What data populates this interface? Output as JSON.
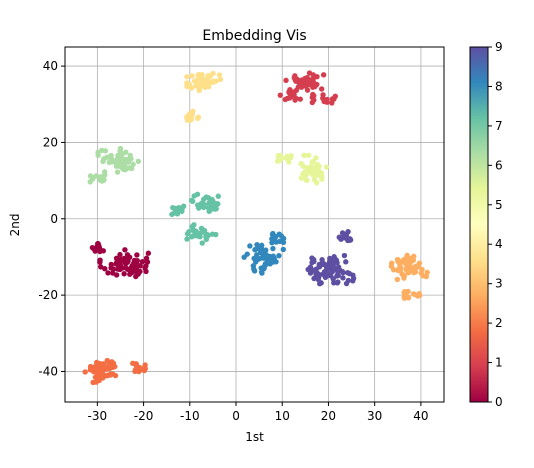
{
  "chart_data": {
    "type": "scatter",
    "title": "Embedding Vis",
    "xlabel": "1st",
    "ylabel": "2nd",
    "xlim": [
      -37,
      45
    ],
    "ylim": [
      -48,
      45
    ],
    "xticks": [
      -30,
      -20,
      -10,
      0,
      10,
      20,
      30,
      40
    ],
    "yticks": [
      -40,
      -20,
      0,
      20,
      40
    ],
    "grid": true,
    "colormap": "Spectral",
    "colorbar": {
      "min": 0,
      "max": 9,
      "ticks": [
        0,
        1,
        2,
        3,
        4,
        5,
        6,
        7,
        8,
        9
      ]
    },
    "clusters": [
      {
        "label": 0,
        "color": "#9e0142",
        "cx": -30,
        "cy": -7.5,
        "rx": 1.5,
        "ry": 1.2,
        "n": 14,
        "style": "square"
      },
      {
        "label": 0,
        "color": "#9e0142",
        "cx": -24,
        "cy": -12,
        "rx": 4.5,
        "ry": 3.2,
        "n": 70,
        "style": "blob"
      },
      {
        "label": 1,
        "color": "#d53e4f",
        "cx": 15,
        "cy": 36,
        "rx": 3.5,
        "ry": 2,
        "n": 45,
        "style": "blob"
      },
      {
        "label": 1,
        "color": "#d53e4f",
        "cx": 12,
        "cy": 32.5,
        "rx": 2,
        "ry": 1.8,
        "n": 18,
        "style": "blob"
      },
      {
        "label": 1,
        "color": "#d53e4f",
        "cx": 19,
        "cy": 31.5,
        "rx": 2.5,
        "ry": 1.2,
        "n": 16,
        "style": "square"
      },
      {
        "label": 2,
        "color": "#f46d43",
        "cx": -29,
        "cy": -39.5,
        "rx": 3,
        "ry": 2.8,
        "n": 65,
        "style": "blob"
      },
      {
        "label": 2,
        "color": "#f46d43",
        "cx": -21,
        "cy": -39,
        "rx": 1.4,
        "ry": 1.2,
        "n": 14,
        "style": "square"
      },
      {
        "label": 3,
        "color": "#fdae61",
        "cx": 37.5,
        "cy": -12.5,
        "rx": 3.2,
        "ry": 2.8,
        "n": 60,
        "style": "blob"
      },
      {
        "label": 3,
        "color": "#fdae61",
        "cx": 38,
        "cy": -20,
        "rx": 2,
        "ry": 1,
        "n": 16,
        "style": "square"
      },
      {
        "label": 4,
        "color": "#fee08b",
        "cx": -7,
        "cy": 36,
        "rx": 3,
        "ry": 2.8,
        "n": 55,
        "style": "blob"
      },
      {
        "label": 4,
        "color": "#fee08b",
        "cx": -9.5,
        "cy": 27,
        "rx": 1.5,
        "ry": 1.2,
        "n": 14,
        "style": "square"
      },
      {
        "label": 5,
        "color": "#e6f598",
        "cx": 16.5,
        "cy": 13,
        "rx": 3,
        "ry": 3,
        "n": 45,
        "style": "blob"
      },
      {
        "label": 5,
        "color": "#e6f598",
        "cx": 10.5,
        "cy": 16,
        "rx": 1.6,
        "ry": 1.2,
        "n": 14,
        "style": "square"
      },
      {
        "label": 6,
        "color": "#abdda4",
        "cx": -25,
        "cy": 15,
        "rx": 4,
        "ry": 2.8,
        "n": 55,
        "style": "blob"
      },
      {
        "label": 6,
        "color": "#abdda4",
        "cx": -30,
        "cy": 10.5,
        "rx": 1.6,
        "ry": 1.2,
        "n": 14,
        "style": "square"
      },
      {
        "label": 7,
        "color": "#66c2a5",
        "cx": -6,
        "cy": 4,
        "rx": 3,
        "ry": 2,
        "n": 35,
        "style": "blob"
      },
      {
        "label": 7,
        "color": "#66c2a5",
        "cx": -12.5,
        "cy": 2.5,
        "rx": 1.4,
        "ry": 1.4,
        "n": 14,
        "style": "square"
      },
      {
        "label": 7,
        "color": "#66c2a5",
        "cx": -8,
        "cy": -4,
        "rx": 3,
        "ry": 2,
        "n": 30,
        "style": "blob"
      },
      {
        "label": 8,
        "color": "#3288bd",
        "cx": 6,
        "cy": -10,
        "rx": 3.5,
        "ry": 3.5,
        "n": 50,
        "style": "blob"
      },
      {
        "label": 8,
        "color": "#3288bd",
        "cx": 9,
        "cy": -5,
        "rx": 1.5,
        "ry": 1.5,
        "n": 14,
        "style": "square"
      },
      {
        "label": 9,
        "color": "#5e4fa2",
        "cx": 20,
        "cy": -13.5,
        "rx": 4.5,
        "ry": 3.2,
        "n": 75,
        "style": "blob"
      },
      {
        "label": 9,
        "color": "#5e4fa2",
        "cx": 23.5,
        "cy": -4.5,
        "rx": 1.4,
        "ry": 1.2,
        "n": 14,
        "style": "square"
      }
    ]
  }
}
